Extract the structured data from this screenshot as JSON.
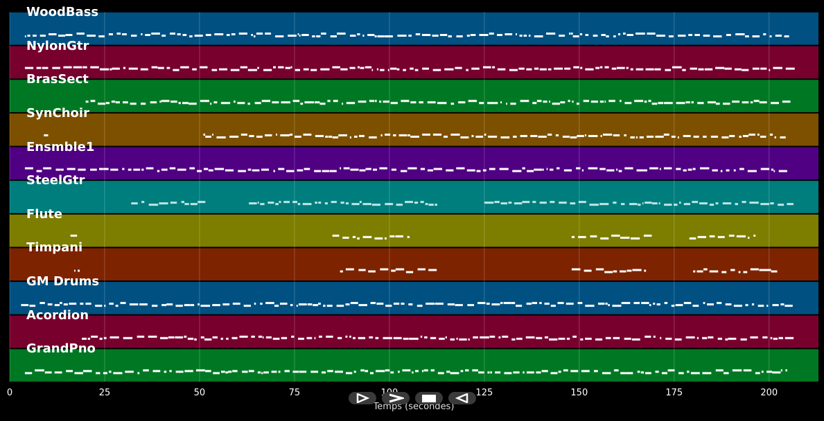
{
  "chart_data": {
    "type": "pianoroll",
    "xlabel": "Temps (secondes)",
    "xlim": [
      0,
      213
    ],
    "xticks": [
      0,
      25,
      50,
      75,
      100,
      125,
      150,
      175,
      200
    ],
    "tracks": [
      {
        "name": "WoodBass",
        "color": "#005082"
      },
      {
        "name": "NylonGtr",
        "color": "#78002d"
      },
      {
        "name": "BrasSect",
        "color": "#007823"
      },
      {
        "name": "SynChoir",
        "color": "#7d5000"
      },
      {
        "name": "Ensmble1",
        "color": "#500082"
      },
      {
        "name": "SteelGtr",
        "color": "#007d7d"
      },
      {
        "name": "Flute",
        "color": "#7d7d00"
      },
      {
        "name": "Timpani",
        "color": "#7d2300"
      },
      {
        "name": "GM Drums",
        "color": "#005082"
      },
      {
        "name": "Acordion",
        "color": "#78002d"
      },
      {
        "name": "GrandPno",
        "color": "#007823"
      }
    ]
  },
  "playback": {
    "icons": [
      "play-icon",
      "fast-forward-icon",
      "stop-icon",
      "rewind-icon"
    ]
  }
}
